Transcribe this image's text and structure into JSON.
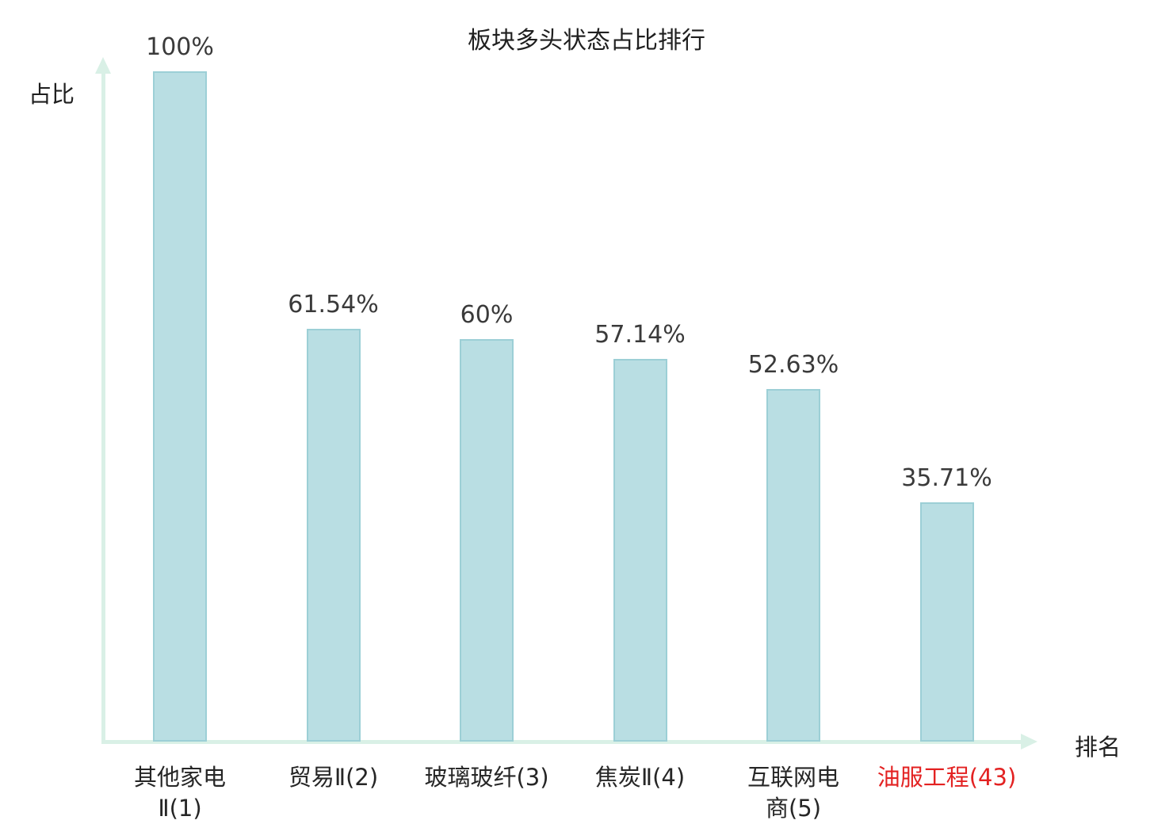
{
  "chart_data": {
    "type": "bar",
    "title": "板块多头状态占比排行",
    "xlabel": "排名",
    "ylabel": "占比",
    "categories": [
      "其他家电Ⅱ(1)",
      "贸易Ⅱ(2)",
      "玻璃玻纤(3)",
      "焦炭Ⅱ(4)",
      "互联网电商(5)",
      "油服工程(43)"
    ],
    "tick_labels": [
      "其他家电\nⅡ(1)",
      "贸易Ⅱ(2)",
      "玻璃玻纤(3)",
      "焦炭Ⅱ(4)",
      "互联网电\n商(5)",
      "油服工程(43)"
    ],
    "values": [
      100,
      61.54,
      60,
      57.14,
      52.63,
      35.71
    ],
    "value_labels": [
      "100%",
      "61.54%",
      "60%",
      "57.14%",
      "52.63%",
      "35.71%"
    ],
    "ylim": [
      0,
      100
    ],
    "grid": false,
    "legend": null,
    "highlight_index": 5,
    "colors": {
      "bar_fill": "#b9dee3",
      "bar_border": "#9ccfd6",
      "axis": "#d9f0e6",
      "tick_text": "#262626",
      "value_text": "#3a3a3a",
      "title_text": "#1f1f1f",
      "highlight": "#e32222"
    }
  }
}
